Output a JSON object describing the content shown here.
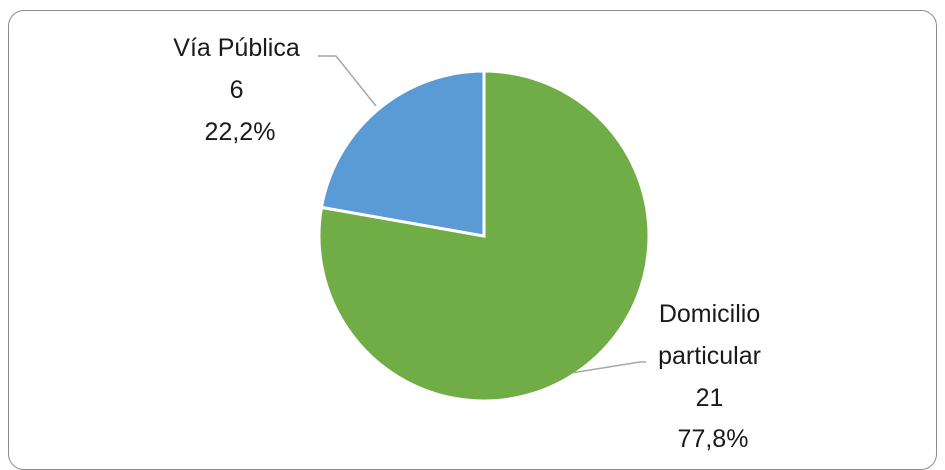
{
  "chart_data": {
    "type": "pie",
    "start_angle_deg": 0,
    "direction": "clockwise",
    "slices": [
      {
        "label_lines": [
          "Domicilio",
          "particular"
        ],
        "value": 21,
        "value_text": "21",
        "percent_text": "77,8%",
        "color": "#70ad47"
      },
      {
        "label_lines": [
          "Vía Pública"
        ],
        "value": 6,
        "value_text": "6",
        "percent_text": "22,2%",
        "color": "#5b9bd5"
      }
    ]
  }
}
